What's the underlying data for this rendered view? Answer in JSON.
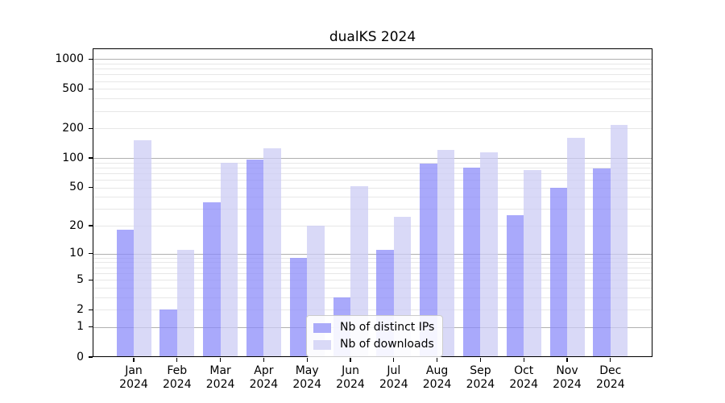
{
  "chart_data": {
    "type": "bar",
    "title": "dualKS 2024",
    "categories": [
      "Jan 2024",
      "Feb 2024",
      "Mar 2024",
      "Apr 2024",
      "May 2024",
      "Jun 2024",
      "Jul 2024",
      "Aug 2024",
      "Sep 2024",
      "Oct 2024",
      "Nov 2024",
      "Dec 2024"
    ],
    "series": [
      {
        "name": "Nb of distinct IPs",
        "color": "rgba(140,140,250,0.75)",
        "solid_color_hex": "#ababf9",
        "values": [
          18,
          2,
          35,
          96,
          9,
          3,
          11,
          88,
          80,
          26,
          50,
          78
        ]
      },
      {
        "name": "Nb of downloads",
        "color": "rgba(204,204,244,0.75)",
        "solid_color_hex": "#d9d9f7",
        "values": [
          150,
          11,
          90,
          125,
          20,
          52,
          25,
          120,
          115,
          75,
          160,
          215
        ]
      }
    ],
    "xlabel": "",
    "ylabel": "",
    "yscale": "log1p",
    "ylim": [
      0,
      1280
    ],
    "yticks": [
      0,
      1,
      2,
      5,
      10,
      20,
      50,
      100,
      200,
      500,
      1000
    ],
    "grid": "horizontal major + log minor",
    "grid_major_color": "#b0b0b0",
    "grid_minor_color": "#e7e7e7",
    "legend_position": "lower center"
  }
}
